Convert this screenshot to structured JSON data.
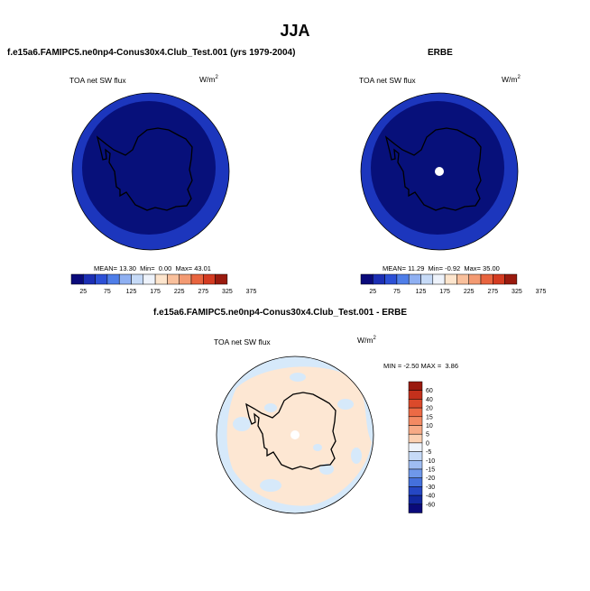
{
  "season": "JJA",
  "panels": [
    {
      "title": "f.e15a6.FAMIPC5.ne0np4-Conus30x4.Club_Test.001 (yrs 1979-2004)",
      "variable": "TOA net SW flux",
      "units": "W/m",
      "units_exp": "2",
      "stats": {
        "mean_label": "MEAN=",
        "mean": "13.30",
        "min_label": "Min=",
        "min": "0.00",
        "max_label": "Max=",
        "max": "43.01"
      }
    },
    {
      "title": "ERBE",
      "variable": "TOA net SW flux",
      "units": "W/m",
      "units_exp": "2",
      "stats": {
        "mean_label": "MEAN=",
        "mean": "11.29",
        "min_label": "Min=",
        "min": "-0.92",
        "max_label": "Max=",
        "max": "35.00"
      }
    },
    {
      "title": "f.e15a6.FAMIPC5.ne0np4-Conus30x4.Club_Test.001 - ERBE",
      "variable": "TOA net SW flux",
      "units": "W/m",
      "units_exp": "2",
      "stats": {
        "min_label": "MIN =",
        "min": "-2.50",
        "max_label": "MAX =",
        "max": "3.86"
      }
    }
  ],
  "colorbar_horizontal": {
    "ticks": [
      "25",
      "75",
      "125",
      "175",
      "225",
      "275",
      "325",
      "375"
    ],
    "colors": [
      "#0a0a7a",
      "#1c2fb4",
      "#2c50d6",
      "#4f7ee8",
      "#8fb0f2",
      "#c6daf7",
      "#eef3fb",
      "#fde5cd",
      "#f9c09c",
      "#f39a72",
      "#e8643f",
      "#d43b21",
      "#9a1a0e"
    ]
  },
  "colorbar_vertical": {
    "ticks": [
      "60",
      "40",
      "20",
      "15",
      "10",
      "5",
      "0",
      "-5",
      "-10",
      "-15",
      "-20",
      "-30",
      "-40",
      "-60"
    ],
    "colors": [
      "#9a1a0e",
      "#c3301c",
      "#db4a2b",
      "#ec6a45",
      "#f38a63",
      "#f7aa86",
      "#fbd0b2",
      "#eef3fb",
      "#c6daf7",
      "#9fbdf2",
      "#6f98ea",
      "#4470dc",
      "#2547c4",
      "#1228a0",
      "#0a0a7a"
    ]
  },
  "map_colors": {
    "deep_blue": "#07107a",
    "ring_blue": "#1c36bd",
    "diff_orange": "#fde7d3",
    "diff_blue": "#d6e9fa"
  }
}
